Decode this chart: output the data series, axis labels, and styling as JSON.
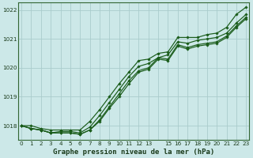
{
  "title": "Graphe pression niveau de la mer (hPa)",
  "background_color": "#cce8e8",
  "grid_color": "#aacccc",
  "line_color": "#1a5c1a",
  "xlim": [
    -0.3,
    23.3
  ],
  "ylim": [
    1017.5,
    1022.25
  ],
  "yticks": [
    1018,
    1019,
    1020,
    1021,
    1022
  ],
  "xtick_labels": [
    "0",
    "1",
    "2",
    "3",
    "4",
    "5",
    "6",
    "7",
    "8",
    "9",
    "10",
    "11",
    "12",
    "13",
    "",
    "15",
    "16",
    "17",
    "18",
    "19",
    "20",
    "21",
    "22",
    "23"
  ],
  "series": [
    [
      1018.0,
      1018.0,
      1017.9,
      1017.85,
      1017.85,
      1017.85,
      1017.85,
      1018.15,
      1018.55,
      1019.0,
      1019.45,
      1019.85,
      1020.25,
      1020.3,
      1020.5,
      1020.55,
      1021.05,
      1021.05,
      1021.05,
      1021.15,
      1021.2,
      1021.4,
      1021.85,
      1022.1
    ],
    [
      1018.0,
      1017.9,
      1017.85,
      1017.75,
      1017.8,
      1017.8,
      1017.75,
      1017.95,
      1018.35,
      1018.8,
      1019.25,
      1019.7,
      1020.05,
      1020.15,
      1020.35,
      1020.45,
      1020.9,
      1020.85,
      1020.95,
      1021.0,
      1021.05,
      1021.2,
      1021.55,
      1021.85
    ],
    [
      1018.0,
      1017.9,
      1017.85,
      1017.75,
      1017.75,
      1017.75,
      1017.7,
      1017.85,
      1018.2,
      1018.65,
      1019.1,
      1019.55,
      1019.9,
      1020.0,
      1020.35,
      1020.3,
      1020.8,
      1020.7,
      1020.8,
      1020.85,
      1020.9,
      1021.1,
      1021.45,
      1021.75
    ],
    [
      1018.0,
      1017.9,
      1017.85,
      1017.75,
      1017.75,
      1017.75,
      1017.7,
      1017.85,
      1018.15,
      1018.6,
      1019.0,
      1019.45,
      1019.85,
      1019.95,
      1020.3,
      1020.25,
      1020.75,
      1020.65,
      1020.75,
      1020.8,
      1020.85,
      1021.05,
      1021.4,
      1021.7
    ]
  ]
}
